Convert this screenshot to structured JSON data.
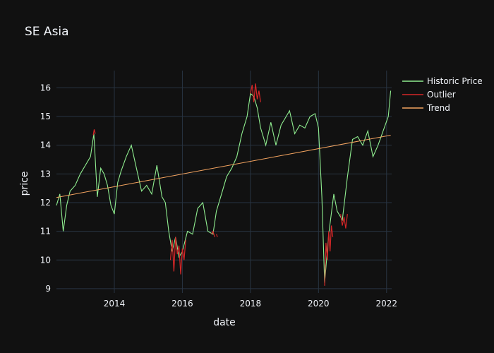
{
  "chart_data": {
    "type": "line",
    "title": "SE Asia",
    "xlabel": "date",
    "ylabel": "price",
    "xlim": [
      2012.3,
      2022.15
    ],
    "ylim": [
      8.85,
      16.6
    ],
    "x_ticks": [
      2014,
      2016,
      2018,
      2020,
      2022
    ],
    "y_ticks": [
      9,
      10,
      11,
      12,
      13,
      14,
      15,
      16
    ],
    "grid": true,
    "legend_position": "top-right",
    "colors": {
      "historic": "#90ee90",
      "outlier": "#d62728",
      "trend": "#f4a460",
      "background": "#111111",
      "grid": "#283442"
    },
    "series": [
      {
        "name": "Historic Price",
        "x": [
          2012.3,
          2012.4,
          2012.5,
          2012.6,
          2012.7,
          2012.85,
          2013.0,
          2013.15,
          2013.3,
          2013.4,
          2013.5,
          2013.6,
          2013.7,
          2013.8,
          2013.9,
          2014.0,
          2014.1,
          2014.2,
          2014.35,
          2014.5,
          2014.65,
          2014.8,
          2014.95,
          2015.1,
          2015.25,
          2015.4,
          2015.5,
          2015.6,
          2015.7,
          2015.8,
          2015.9,
          2016.0,
          2016.15,
          2016.3,
          2016.45,
          2016.6,
          2016.75,
          2016.9,
          2017.0,
          2017.15,
          2017.3,
          2017.45,
          2017.6,
          2017.75,
          2017.9,
          2018.0,
          2018.1,
          2018.2,
          2018.3,
          2018.45,
          2018.6,
          2018.75,
          2018.9,
          2019.0,
          2019.15,
          2019.3,
          2019.45,
          2019.6,
          2019.75,
          2019.9,
          2020.0,
          2020.1,
          2020.18,
          2020.3,
          2020.45,
          2020.55,
          2020.7,
          2020.85,
          2021.0,
          2021.15,
          2021.3,
          2021.45,
          2021.6,
          2021.75,
          2021.9,
          2022.05,
          2022.12
        ],
        "values": [
          11.9,
          12.3,
          11.0,
          11.9,
          12.4,
          12.6,
          13.0,
          13.3,
          13.6,
          14.4,
          12.2,
          13.2,
          13.0,
          12.6,
          11.9,
          11.6,
          12.7,
          13.1,
          13.6,
          14.0,
          13.2,
          12.4,
          12.6,
          12.3,
          13.3,
          12.2,
          12.0,
          11.0,
          10.3,
          10.8,
          10.1,
          10.3,
          11.0,
          10.9,
          11.8,
          12.0,
          11.0,
          10.9,
          11.7,
          12.3,
          12.9,
          13.2,
          13.6,
          14.4,
          15.0,
          15.8,
          15.7,
          15.3,
          14.6,
          14.0,
          14.8,
          14.0,
          14.7,
          14.9,
          15.2,
          14.4,
          14.7,
          14.6,
          15.0,
          15.1,
          14.6,
          12.2,
          9.2,
          10.9,
          12.3,
          11.7,
          11.4,
          12.9,
          14.2,
          14.3,
          14.0,
          14.5,
          13.6,
          14.0,
          14.5,
          15.0,
          15.9
        ]
      },
      {
        "name": "Outlier",
        "segments": [
          {
            "x": [
              2013.38,
              2013.41,
              2013.44
            ],
            "values": [
              14.35,
              14.55,
              14.4
            ]
          },
          {
            "x": [
              2015.65,
              2015.7,
              2015.75,
              2015.8,
              2015.85,
              2015.9,
              2015.95,
              2016.0,
              2016.05,
              2016.1
            ],
            "values": [
              10.0,
              10.7,
              9.6,
              10.8,
              10.2,
              10.5,
              9.5,
              10.4,
              10.0,
              10.7
            ]
          },
          {
            "x": [
              2016.85,
              2016.9,
              2016.95
            ],
            "values": [
              10.9,
              11.0,
              10.8
            ]
          },
          {
            "x": [
              2017.0,
              2017.03
            ],
            "values": [
              10.9,
              10.8
            ]
          },
          {
            "x": [
              2018.0,
              2018.05,
              2018.1,
              2018.15,
              2018.2,
              2018.25,
              2018.3
            ],
            "values": [
              15.8,
              16.1,
              15.5,
              16.15,
              15.6,
              15.9,
              15.5
            ]
          },
          {
            "x": [
              2020.18,
              2020.22,
              2020.26,
              2020.3,
              2020.34,
              2020.38,
              2020.42
            ],
            "values": [
              9.1,
              10.6,
              10.0,
              11.0,
              10.3,
              11.2,
              10.8
            ]
          },
          {
            "x": [
              2020.65,
              2020.7,
              2020.75,
              2020.8,
              2020.85
            ],
            "values": [
              11.6,
              11.2,
              11.5,
              11.1,
              11.6
            ]
          }
        ]
      },
      {
        "name": "Trend",
        "x": [
          2012.3,
          2022.12
        ],
        "values": [
          12.18,
          14.35
        ]
      }
    ]
  }
}
